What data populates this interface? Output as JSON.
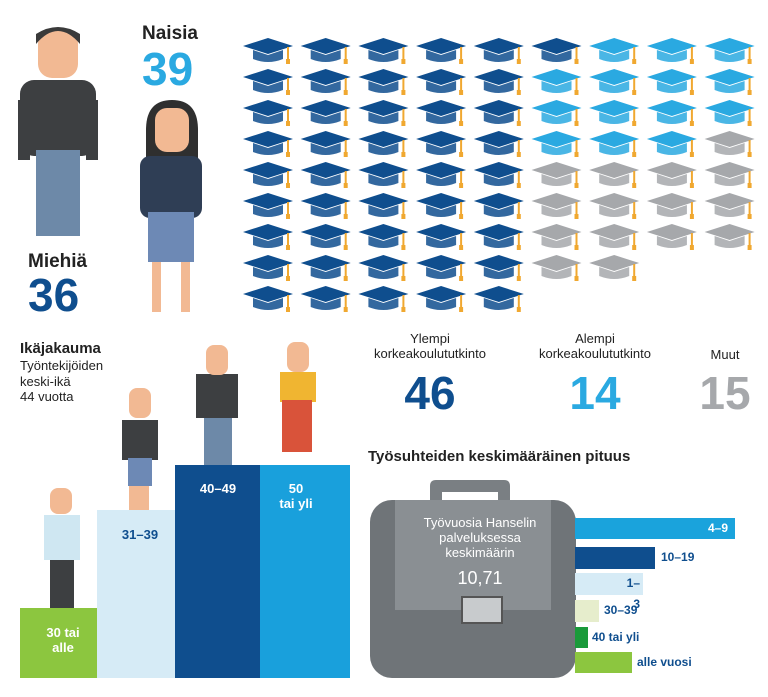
{
  "gender": {
    "women_label": "Naisia",
    "women_count": "39",
    "men_label": "Miehiä",
    "men_count": "36"
  },
  "degrees": [
    {
      "label": "Ylempi\nkorkeakoulututkinto",
      "count": 46,
      "color": "#0f4e8e"
    },
    {
      "label": "Alempi\nkorkeakoulututkinto",
      "count": 14,
      "color": "#2aa9e1"
    },
    {
      "label": "Muut",
      "count": 15,
      "color": "#a6a8ab"
    }
  ],
  "age": {
    "title": "Ikäjakauma",
    "subtitle": "Työntekijöiden\nkeski-ikä\n44 vuotta",
    "groups": [
      "30 tai\nalle",
      "31–39",
      "40–49",
      "50\ntai yli"
    ]
  },
  "tenure": {
    "title": "Työsuhteiden keskimääräinen pituus",
    "case_text": "Työvuosia Hanselin\npalveluksessa\nkeskimäärin",
    "case_value": "10,71",
    "groups": [
      "4–9",
      "10–19",
      "1–3",
      "30–39",
      "40 tai yli",
      "alle vuosi"
    ]
  }
}
